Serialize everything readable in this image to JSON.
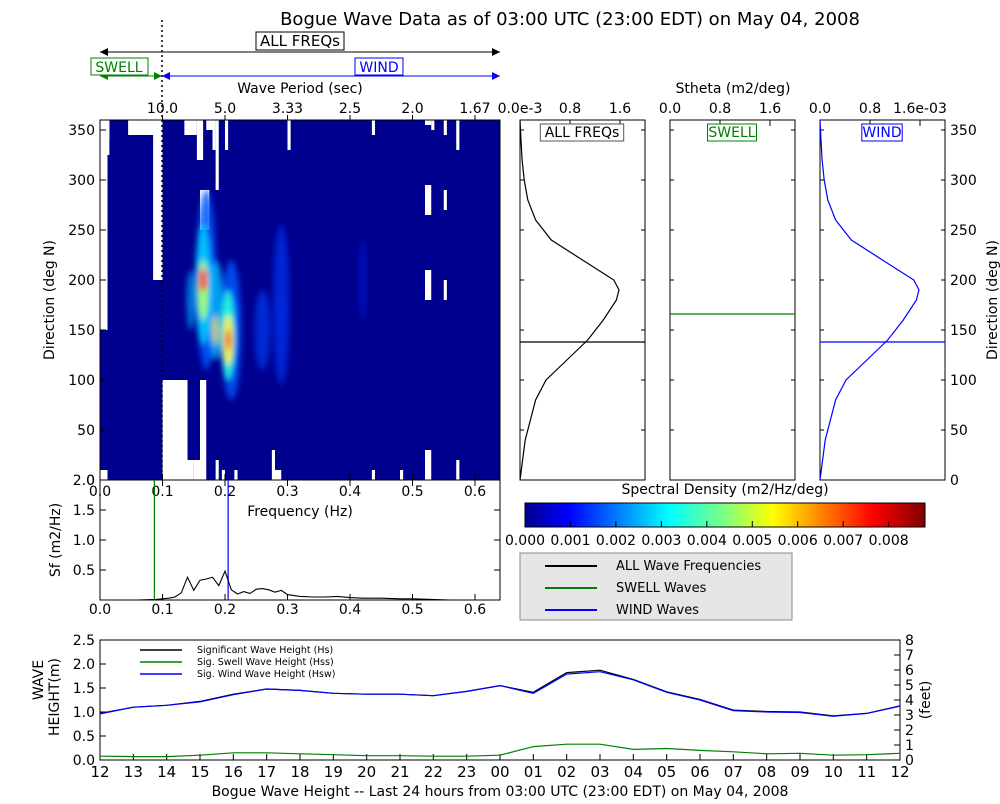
{
  "title": "Bogue Wave Data as of 03:00 UTC (23:00 EDT) on May 04, 2008",
  "colors": {
    "all": "#000000",
    "swell": "#008000",
    "wind": "#0000ff"
  },
  "bands": {
    "all_label": "ALL FREQs",
    "swell_label": "SWELL",
    "wind_label": "WIND",
    "period_label": "Wave Period (sec)",
    "period_ticks": [
      "10.0",
      "5.0",
      "3.33",
      "2.5",
      "2.0",
      "1.67"
    ]
  },
  "stheta_label": "Stheta (m2/deg)",
  "chart_data": [
    {
      "type": "heatmap",
      "id": "directional-spectrum",
      "xlabel": "Frequency (Hz)",
      "ylabel": "Direction (deg N)",
      "xlim": [
        0,
        0.64
      ],
      "ylim": [
        0,
        360
      ],
      "x_ticks": [
        "0.0",
        "0.1",
        "0.2",
        "0.3",
        "0.4",
        "0.5",
        "0.6"
      ],
      "y_ticks": [
        "0",
        "50",
        "100",
        "150",
        "200",
        "250",
        "300",
        "350"
      ],
      "vmin": 0,
      "vmax": 0.0088,
      "swell_cutoff_hz": 0.1,
      "hotspots": [
        {
          "freq": 0.165,
          "dir": 195,
          "value": 0.0075
        },
        {
          "freq": 0.205,
          "dir": 140,
          "value": 0.0065
        },
        {
          "freq": 0.185,
          "dir": 165,
          "value": 0.0045
        },
        {
          "freq": 0.29,
          "dir": 190,
          "value": 0.0015
        }
      ]
    },
    {
      "type": "line",
      "id": "stheta-all",
      "label": "ALL FREQs",
      "x_ticks": [
        "0.0e-3",
        "0.8",
        "1.6"
      ],
      "xlim": [
        0,
        0.0024
      ],
      "ylim": [
        0,
        360
      ],
      "mean_dir": 138,
      "dir": [
        0,
        20,
        40,
        60,
        80,
        100,
        120,
        140,
        160,
        180,
        190,
        200,
        220,
        240,
        260,
        280,
        300,
        320,
        340,
        360
      ],
      "values": [
        0.0,
        5e-05,
        0.0001,
        0.0002,
        0.0003,
        0.0005,
        0.0009,
        0.0013,
        0.0016,
        0.00185,
        0.0019,
        0.0018,
        0.0012,
        0.0006,
        0.0003,
        0.00015,
        8e-05,
        4e-05,
        2e-05,
        0.0
      ]
    },
    {
      "type": "line",
      "id": "stheta-swell",
      "label": "SWELL",
      "x_ticks": [
        "0.0",
        "0.8",
        "1.6"
      ],
      "xlim": [
        0,
        2.4
      ],
      "ylim": [
        0,
        360
      ],
      "mean_dir": 166,
      "dir": [
        0,
        360
      ],
      "values": [
        0.0,
        0.0
      ]
    },
    {
      "type": "line",
      "id": "stheta-wind",
      "label": "WIND",
      "x_ticks": [
        "0.0",
        "0.8",
        "1.6e-03"
      ],
      "xlim": [
        0,
        0.0024
      ],
      "ylim": [
        0,
        360
      ],
      "mean_dir": 138,
      "dir": [
        0,
        20,
        40,
        60,
        80,
        100,
        120,
        140,
        160,
        180,
        190,
        200,
        220,
        240,
        260,
        280,
        300,
        320,
        340,
        360
      ],
      "values": [
        0.0,
        5e-05,
        0.0001,
        0.0002,
        0.0003,
        0.0005,
        0.0009,
        0.0013,
        0.0016,
        0.00185,
        0.0019,
        0.0018,
        0.0012,
        0.0006,
        0.0003,
        0.00015,
        8e-05,
        4e-05,
        2e-05,
        0.0
      ],
      "y_ticks": [
        "0",
        "50",
        "100",
        "150",
        "200",
        "250",
        "300",
        "350"
      ],
      "ylabel": "Direction (deg N)"
    },
    {
      "type": "line",
      "id": "frequency-spectrum",
      "xlabel": "Frequency (Hz)",
      "ylabel": "Sf (m2/Hz)",
      "xlim": [
        0,
        0.64
      ],
      "ylim": [
        0,
        2.0
      ],
      "x_ticks": [
        "0.0",
        "0.1",
        "0.2",
        "0.3",
        "0.4",
        "0.5",
        "0.6"
      ],
      "y_ticks": [
        "0.0",
        "0.5",
        "1.0",
        "1.5",
        "2.0"
      ],
      "swell_peak_hz": 0.087,
      "wind_peak_hz": 0.205,
      "swell_cutoff_hz": 0.1,
      "freq": [
        0.0,
        0.06,
        0.09,
        0.11,
        0.12,
        0.13,
        0.14,
        0.15,
        0.16,
        0.17,
        0.18,
        0.19,
        0.2,
        0.21,
        0.22,
        0.23,
        0.24,
        0.25,
        0.26,
        0.27,
        0.28,
        0.29,
        0.3,
        0.32,
        0.34,
        0.36,
        0.38,
        0.4,
        0.42,
        0.45,
        0.48,
        0.5,
        0.53,
        0.56,
        0.58
      ],
      "values": [
        0.0,
        0.0,
        0.01,
        0.03,
        0.05,
        0.12,
        0.38,
        0.16,
        0.33,
        0.35,
        0.38,
        0.24,
        0.48,
        0.17,
        0.1,
        0.14,
        0.11,
        0.18,
        0.19,
        0.17,
        0.13,
        0.16,
        0.09,
        0.06,
        0.05,
        0.05,
        0.06,
        0.04,
        0.03,
        0.03,
        0.02,
        0.02,
        0.01,
        0.0,
        0.0
      ]
    },
    {
      "type": "bar",
      "id": "colorbar",
      "xlabel": "Spectral Density (m2/Hz/deg)",
      "ticks": [
        "0.000",
        "0.001",
        "0.002",
        "0.003",
        "0.004",
        "0.005",
        "0.006",
        "0.007",
        "0.008"
      ],
      "range": [
        0,
        0.0088
      ]
    },
    {
      "type": "line",
      "id": "wave-height",
      "xlabel": "Bogue Wave Height -- Last 24 hours from 03:00 UTC (23:00 EDT) on May 04, 2008",
      "ylabel_lines": [
        "WAVE",
        "HEIGHT(m)"
      ],
      "ylabel_right": "(feet)",
      "ylim": [
        0,
        2.5
      ],
      "ylim_right": [
        0,
        8
      ],
      "y_ticks": [
        "0.0",
        "0.5",
        "1.0",
        "1.5",
        "2.0",
        "2.5"
      ],
      "y_ticks_right": [
        "0",
        "1",
        "2",
        "3",
        "4",
        "5",
        "6",
        "7",
        "8"
      ],
      "x": [
        "12",
        "13",
        "14",
        "15",
        "16",
        "17",
        "18",
        "19",
        "20",
        "21",
        "22",
        "23",
        "00",
        "01",
        "02",
        "03",
        "04",
        "05",
        "06",
        "07",
        "08",
        "09",
        "10",
        "11",
        "12"
      ],
      "series": [
        {
          "name": "Significant Wave Height (Hs)",
          "color": "#000000",
          "values": [
            0.97,
            1.1,
            1.14,
            1.22,
            1.37,
            1.48,
            1.45,
            1.39,
            1.37,
            1.37,
            1.34,
            1.43,
            1.55,
            1.41,
            1.82,
            1.87,
            1.68,
            1.42,
            1.26,
            1.04,
            1.01,
            1.0,
            0.92,
            0.97,
            1.13
          ]
        },
        {
          "name": "Sig. Swell Wave Height (Hss)",
          "color": "#008000",
          "values": [
            0.08,
            0.07,
            0.07,
            0.1,
            0.15,
            0.15,
            0.13,
            0.11,
            0.09,
            0.09,
            0.08,
            0.08,
            0.1,
            0.28,
            0.33,
            0.33,
            0.22,
            0.24,
            0.2,
            0.17,
            0.13,
            0.14,
            0.1,
            0.11,
            0.14
          ]
        },
        {
          "name": "Sig. Wind Wave Height (Hsw)",
          "color": "#0000ff",
          "values": [
            0.96,
            1.1,
            1.14,
            1.21,
            1.36,
            1.48,
            1.45,
            1.39,
            1.37,
            1.37,
            1.34,
            1.43,
            1.55,
            1.39,
            1.79,
            1.84,
            1.67,
            1.41,
            1.25,
            1.03,
            1.0,
            0.99,
            0.91,
            0.97,
            1.12
          ]
        }
      ]
    }
  ],
  "legend": [
    {
      "label": "ALL Wave Frequencies",
      "color": "#000000"
    },
    {
      "label": "SWELL Waves",
      "color": "#008000"
    },
    {
      "label": "WIND Waves",
      "color": "#0000ff"
    }
  ]
}
